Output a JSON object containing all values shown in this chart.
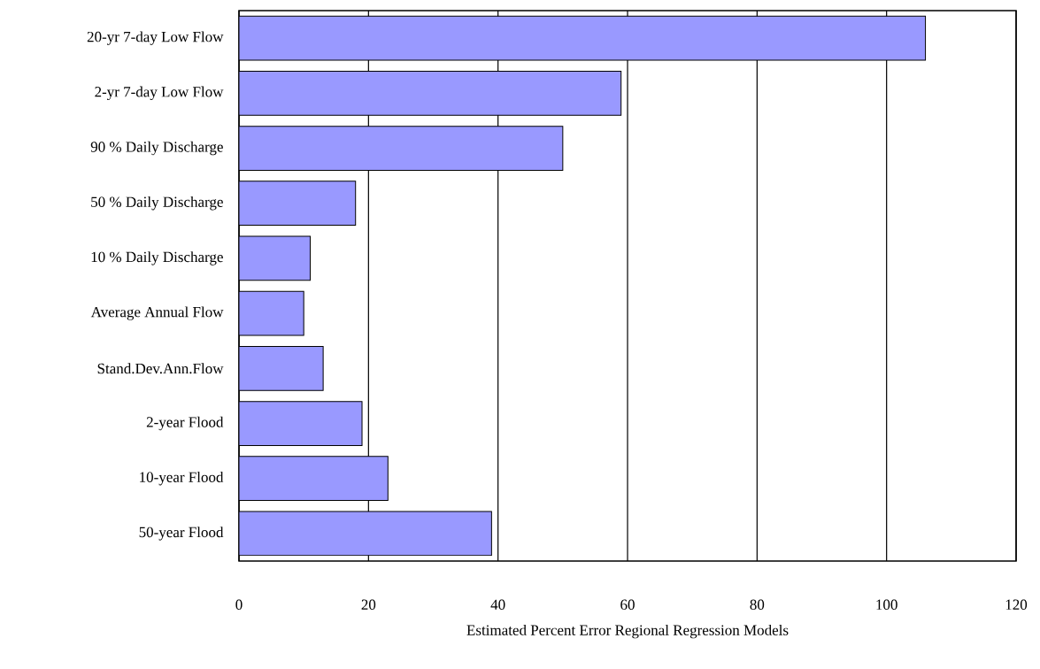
{
  "chart_data": {
    "type": "bar",
    "orientation": "horizontal",
    "categories": [
      "20-yr 7-day Low Flow",
      "2-yr 7-day Low Flow",
      "90 % Daily Discharge",
      "50 % Daily Discharge",
      "10 % Daily Discharge",
      "Average Annual Flow",
      "Stand.Dev.Ann.Flow",
      "2-year Flood",
      "10-year Flood",
      "50-year Flood"
    ],
    "values": [
      106,
      59,
      50,
      18,
      11,
      10,
      13,
      19,
      23,
      39
    ],
    "color": "#9999ff",
    "xlim": [
      0,
      120
    ],
    "xticks": [
      0,
      20,
      40,
      60,
      80,
      100,
      120
    ],
    "xlabel": "Estimated Percent Error Regional Regression Models",
    "grid": "x"
  }
}
